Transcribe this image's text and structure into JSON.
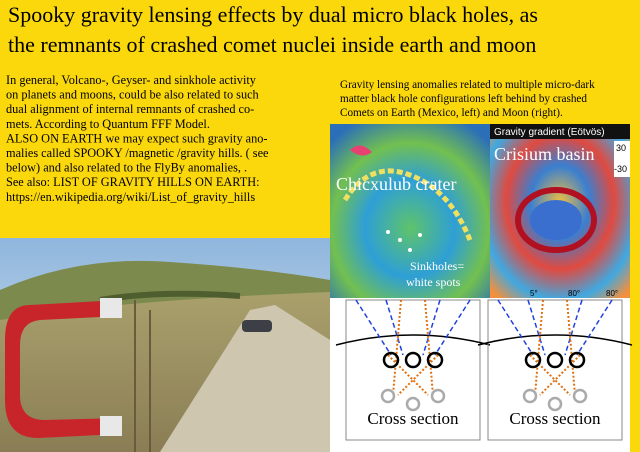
{
  "title": {
    "lines": [
      "Spooky gravity lensing effects by dual micro black holes, as",
      "the remnants of crashed comet nuclei inside earth and moon"
    ]
  },
  "intro": {
    "lines": [
      "In general, Volcano-, Geyser- and sinkhole activity",
      "on planets and moons, could be also related to such",
      "dual alignment of internal remnants of crashed co-",
      "mets. According to Quantum FFF Model.",
      "ALSO ON EARTH we may expect such gravity ano-",
      "malies called SPOOKY /magnetic /gravity hills. ( see",
      "below) and also related to the FlyBy anomalies, .",
      "See also:  LIST OF GRAVITY HILLS ON EARTH:",
      "https://en.wikipedia.org/wiki/List_of_gravity_hills"
    ]
  },
  "caption": {
    "lines": [
      "Gravity lensing anomalies related to multiple micro-dark",
      "matter black hole configurations left behind by crashed",
      "Comets on Earth (Mexico, left) and Moon (right)."
    ]
  },
  "maps": [
    {
      "label": "Chicxulub crater",
      "note": [
        "Sinkholes=",
        "white spots"
      ]
    },
    {
      "label": "Crisium basin",
      "scale_title": "Gravity gradient (Eötvös)",
      "scale_ticks": [
        "30",
        "-30"
      ],
      "axis_labels": [
        "5°",
        "80°",
        "80°"
      ]
    }
  ],
  "cross_sections": [
    {
      "label": "Cross section"
    },
    {
      "label": "Cross section"
    }
  ]
}
